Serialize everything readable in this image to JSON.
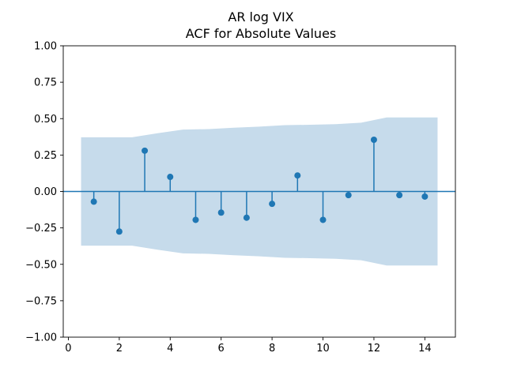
{
  "chart_data": {
    "type": "stem",
    "title": "AR log VIX",
    "subtitle": "ACF for Absolute Values",
    "xlabel": "",
    "ylabel": "",
    "xlim": [
      -0.2,
      15.2
    ],
    "ylim": [
      -1.0,
      1.0
    ],
    "x_ticks": [
      0,
      2,
      4,
      6,
      8,
      10,
      12,
      14
    ],
    "x_tick_labels": [
      "0",
      "2",
      "4",
      "6",
      "8",
      "10",
      "12",
      "14"
    ],
    "y_ticks": [
      1.0,
      0.75,
      0.5,
      0.25,
      0.0,
      -0.25,
      -0.5,
      -0.75,
      -1.0
    ],
    "y_tick_labels": [
      "1.00",
      "0.75",
      "0.50",
      "0.25",
      "0.00",
      "−0.25",
      "−0.50",
      "−0.75",
      "−1.00"
    ],
    "lags": [
      1,
      2,
      3,
      4,
      5,
      6,
      7,
      8,
      9,
      10,
      11,
      12,
      13,
      14
    ],
    "values": [
      -0.07,
      -0.275,
      0.28,
      0.1,
      -0.195,
      -0.145,
      -0.18,
      -0.085,
      0.11,
      -0.195,
      -0.025,
      0.355,
      -0.025,
      -0.035
    ],
    "confidence_band": {
      "x": [
        0.5,
        1.5,
        2.5,
        3.5,
        4.5,
        5.5,
        6.5,
        7.5,
        8.5,
        9.5,
        10.5,
        11.5,
        12.5,
        13.5,
        14.5
      ],
      "upper": [
        0.372,
        0.372,
        0.372,
        0.4,
        0.425,
        0.428,
        0.438,
        0.445,
        0.455,
        0.458,
        0.462,
        0.472,
        0.508,
        0.508,
        0.508
      ],
      "lower": [
        -0.372,
        -0.372,
        -0.372,
        -0.4,
        -0.425,
        -0.428,
        -0.438,
        -0.445,
        -0.455,
        -0.458,
        -0.462,
        -0.472,
        -0.508,
        -0.508,
        -0.508
      ]
    },
    "zero_line": true,
    "grid": false,
    "colors": {
      "stem": "#1f77b4",
      "band": "#c6dbeb",
      "axis": "#000000"
    }
  }
}
